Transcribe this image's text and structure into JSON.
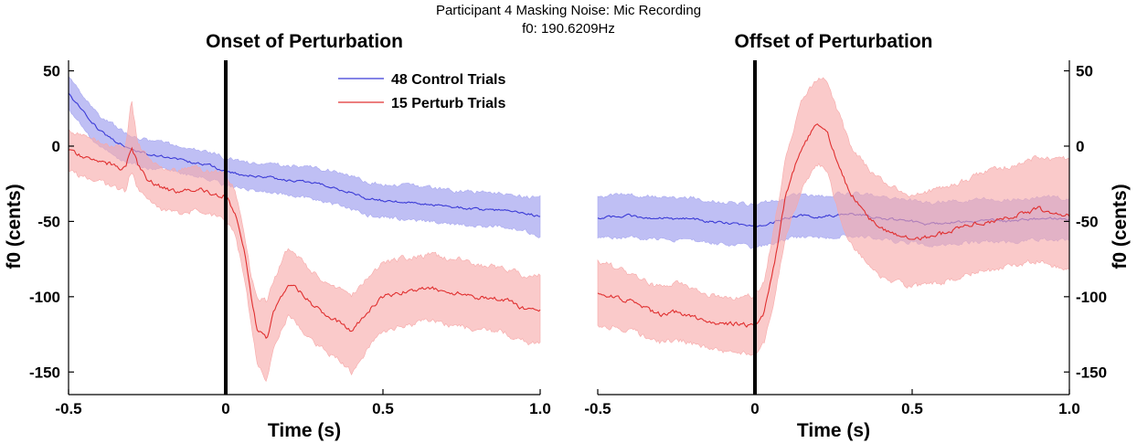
{
  "figure": {
    "suptitle_line1": "Participant 4 Masking Noise: Mic Recording",
    "suptitle_line2": "f0: 190.6209Hz"
  },
  "legend": [
    {
      "label": "48 Control Trials",
      "color": "#3b3bd6"
    },
    {
      "label": "15 Perturb Trials",
      "color": "#e03030"
    }
  ],
  "colors": {
    "control_line": "#3b3bd6",
    "control_band": "#a9a9f0",
    "perturb_line": "#e03030",
    "perturb_band": "#f7a9a9",
    "marker": "#000000"
  },
  "chart_data": [
    {
      "type": "line",
      "title": "Onset of Perturbation",
      "xlabel": "Time (s)",
      "ylabel": "f0 (cents)",
      "xlim": [
        -0.5,
        1.0
      ],
      "ylim": [
        -165,
        57
      ],
      "xticks": [
        "-0.5",
        "0",
        "0.5",
        "1.0"
      ],
      "xtick_values": [
        -0.5,
        0,
        0.5,
        1.0
      ],
      "yticks": [
        "50",
        "0",
        "-50",
        "-100",
        "-150"
      ],
      "ytick_values": [
        50,
        0,
        -50,
        -100,
        -150
      ],
      "y_axis_side": "left",
      "marker_x": 0,
      "legend_position": "top-right",
      "series": [
        {
          "name": "48 Control Trials",
          "x": [
            -0.5,
            -0.45,
            -0.4,
            -0.35,
            -0.3,
            -0.25,
            -0.2,
            -0.15,
            -0.1,
            -0.05,
            0,
            0.05,
            0.1,
            0.15,
            0.2,
            0.25,
            0.3,
            0.35,
            0.4,
            0.45,
            0.5,
            0.55,
            0.6,
            0.65,
            0.7,
            0.75,
            0.8,
            0.85,
            0.9,
            0.95,
            1.0
          ],
          "mean": [
            35,
            22,
            10,
            3,
            -2,
            -5,
            -7,
            -9,
            -11,
            -13,
            -17,
            -19,
            -20,
            -21,
            -23,
            -24,
            -25,
            -28,
            -31,
            -35,
            -36,
            -37,
            -38,
            -39,
            -40,
            -41,
            -42,
            -42,
            -43,
            -44,
            -47
          ],
          "upper": [
            45,
            33,
            20,
            13,
            7,
            4,
            2,
            0,
            -2,
            -4,
            -8,
            -10,
            -11,
            -12,
            -13,
            -14,
            -15,
            -17,
            -20,
            -24,
            -25,
            -26,
            -27,
            -28,
            -29,
            -30,
            -30,
            -31,
            -32,
            -34,
            -34
          ],
          "lower": [
            25,
            11,
            -1,
            -7,
            -11,
            -14,
            -16,
            -18,
            -20,
            -22,
            -26,
            -28,
            -30,
            -31,
            -33,
            -34,
            -36,
            -39,
            -42,
            -46,
            -47,
            -48,
            -49,
            -50,
            -51,
            -52,
            -53,
            -53,
            -54,
            -56,
            -61
          ]
        },
        {
          "name": "15 Perturb Trials",
          "x": [
            -0.5,
            -0.45,
            -0.4,
            -0.35,
            -0.32,
            -0.3,
            -0.28,
            -0.25,
            -0.2,
            -0.15,
            -0.1,
            -0.05,
            0,
            0.03,
            0.06,
            0.08,
            0.1,
            0.13,
            0.15,
            0.2,
            0.25,
            0.3,
            0.35,
            0.4,
            0.45,
            0.5,
            0.55,
            0.6,
            0.65,
            0.7,
            0.75,
            0.8,
            0.85,
            0.9,
            0.95,
            1.0
          ],
          "mean": [
            -3,
            -7,
            -10,
            -13,
            -15,
            0,
            -12,
            -22,
            -28,
            -30,
            -28,
            -31,
            -33,
            -45,
            -72,
            -100,
            -122,
            -128,
            -112,
            -90,
            -100,
            -110,
            -115,
            -124,
            -110,
            -100,
            -97,
            -96,
            -94,
            -96,
            -98,
            -100,
            -101,
            -103,
            -108,
            -110
          ],
          "upper": [
            10,
            6,
            3,
            0,
            -2,
            30,
            2,
            -8,
            -14,
            -16,
            -14,
            -17,
            -19,
            -30,
            -57,
            -85,
            -100,
            -103,
            -90,
            -67,
            -78,
            -88,
            -93,
            -100,
            -87,
            -78,
            -75,
            -73,
            -72,
            -74,
            -76,
            -79,
            -80,
            -82,
            -86,
            -86
          ],
          "lower": [
            -17,
            -21,
            -24,
            -28,
            -30,
            -16,
            -28,
            -37,
            -43,
            -45,
            -43,
            -46,
            -48,
            -60,
            -87,
            -118,
            -145,
            -155,
            -135,
            -112,
            -123,
            -133,
            -140,
            -150,
            -135,
            -123,
            -120,
            -118,
            -116,
            -118,
            -120,
            -122,
            -123,
            -125,
            -130,
            -132
          ]
        }
      ]
    },
    {
      "type": "line",
      "title": "Offset of Perturbation",
      "xlabel": "Time (s)",
      "ylabel": "f0 (cents)",
      "xlim": [
        -0.5,
        1.0
      ],
      "ylim": [
        -165,
        57
      ],
      "xticks": [
        "-0.5",
        "0",
        "0.5",
        "1.0"
      ],
      "xtick_values": [
        -0.5,
        0,
        0.5,
        1.0
      ],
      "yticks": [
        "50",
        "0",
        "-50",
        "-100",
        "-150"
      ],
      "ytick_values": [
        50,
        0,
        -50,
        -100,
        -150
      ],
      "y_axis_side": "right",
      "marker_x": 0,
      "series": [
        {
          "name": "48 Control Trials",
          "x": [
            -0.5,
            -0.45,
            -0.4,
            -0.35,
            -0.3,
            -0.25,
            -0.2,
            -0.15,
            -0.1,
            -0.05,
            0,
            0.05,
            0.1,
            0.15,
            0.2,
            0.25,
            0.3,
            0.35,
            0.4,
            0.45,
            0.5,
            0.55,
            0.6,
            0.65,
            0.7,
            0.75,
            0.8,
            0.85,
            0.9,
            0.95,
            1.0
          ],
          "mean": [
            -48,
            -47,
            -46,
            -48,
            -47,
            -49,
            -48,
            -50,
            -51,
            -52,
            -53,
            -51,
            -48,
            -46,
            -47,
            -46,
            -45,
            -46,
            -48,
            -49,
            -50,
            -52,
            -51,
            -50,
            -50,
            -49,
            -50,
            -49,
            -48,
            -48,
            -49
          ],
          "upper": [
            -34,
            -33,
            -32,
            -34,
            -33,
            -35,
            -34,
            -36,
            -37,
            -38,
            -39,
            -37,
            -34,
            -32,
            -33,
            -32,
            -31,
            -32,
            -34,
            -35,
            -36,
            -38,
            -37,
            -36,
            -36,
            -35,
            -36,
            -35,
            -34,
            -34,
            -35
          ],
          "lower": [
            -62,
            -61,
            -60,
            -62,
            -61,
            -63,
            -62,
            -64,
            -65,
            -66,
            -67,
            -65,
            -62,
            -60,
            -61,
            -60,
            -59,
            -60,
            -62,
            -63,
            -64,
            -66,
            -65,
            -64,
            -64,
            -63,
            -64,
            -63,
            -62,
            -62,
            -63
          ]
        },
        {
          "name": "15 Perturb Trials",
          "x": [
            -0.5,
            -0.45,
            -0.4,
            -0.35,
            -0.3,
            -0.25,
            -0.2,
            -0.15,
            -0.1,
            -0.05,
            0,
            0.03,
            0.06,
            0.1,
            0.15,
            0.2,
            0.23,
            0.26,
            0.3,
            0.35,
            0.4,
            0.45,
            0.5,
            0.55,
            0.6,
            0.65,
            0.7,
            0.75,
            0.8,
            0.85,
            0.9,
            0.95,
            1.0
          ],
          "mean": [
            -98,
            -100,
            -103,
            -108,
            -112,
            -110,
            -113,
            -116,
            -118,
            -118,
            -120,
            -110,
            -80,
            -30,
            0,
            15,
            10,
            -10,
            -30,
            -45,
            -55,
            -58,
            -62,
            -60,
            -58,
            -55,
            -52,
            -50,
            -48,
            -45,
            -42,
            -44,
            -46
          ],
          "upper": [
            -76,
            -80,
            -85,
            -90,
            -94,
            -92,
            -95,
            -98,
            -100,
            -100,
            -100,
            -90,
            -55,
            -5,
            30,
            45,
            45,
            25,
            2,
            -13,
            -23,
            -28,
            -32,
            -30,
            -28,
            -24,
            -20,
            -16,
            -14,
            -10,
            -8,
            -8,
            -8
          ],
          "lower": [
            -118,
            -120,
            -122,
            -126,
            -130,
            -128,
            -131,
            -134,
            -136,
            -137,
            -140,
            -130,
            -105,
            -57,
            -28,
            -12,
            -18,
            -40,
            -62,
            -77,
            -87,
            -90,
            -94,
            -92,
            -90,
            -87,
            -84,
            -82,
            -80,
            -78,
            -76,
            -80,
            -82
          ]
        }
      ]
    }
  ]
}
